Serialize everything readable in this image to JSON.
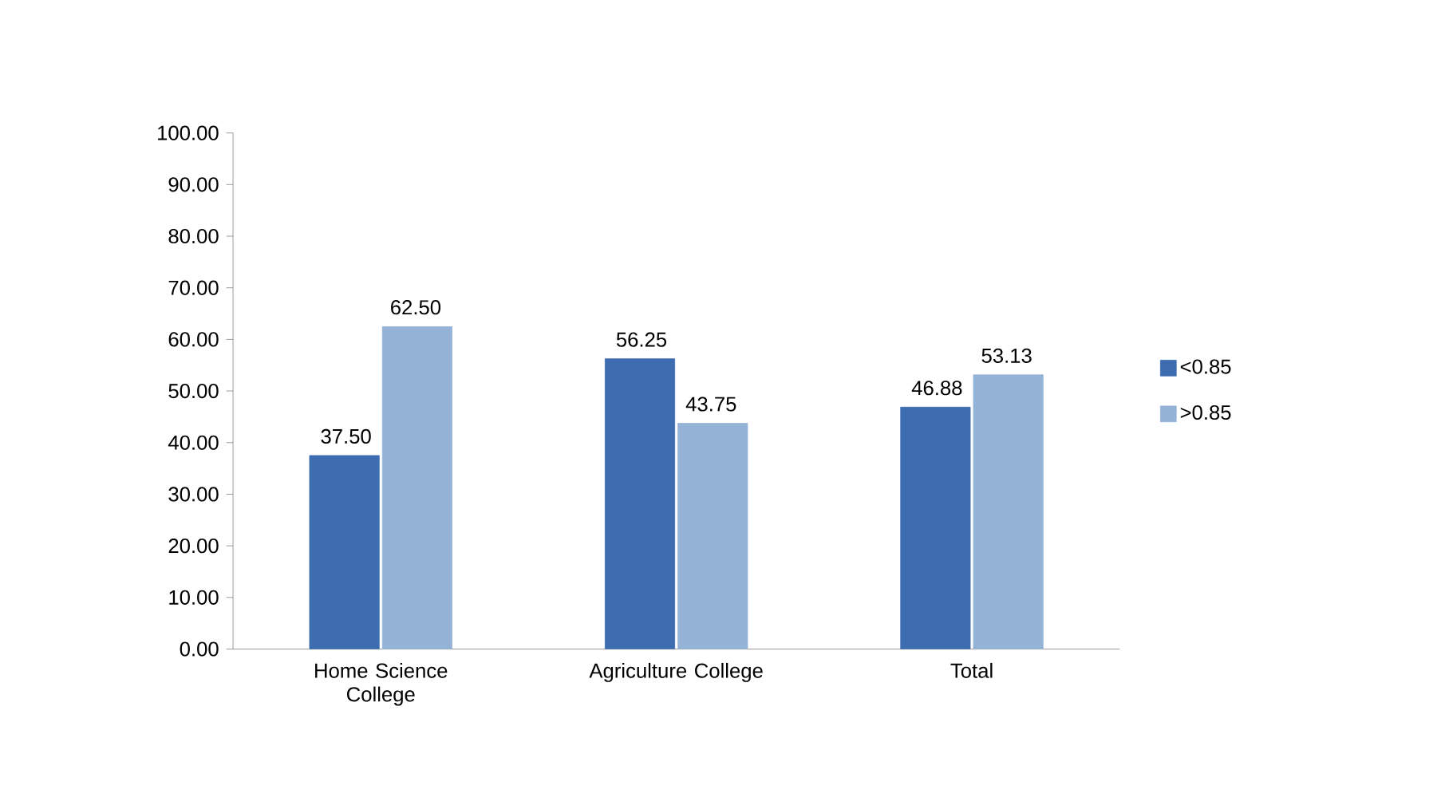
{
  "chart_data": {
    "type": "bar",
    "categories": [
      "Home Science College",
      "Agriculture College",
      "Total"
    ],
    "series": [
      {
        "name": "<0.85",
        "color": "#3d6cb0",
        "values": [
          37.5,
          56.25,
          46.88
        ],
        "value_labels": [
          "37.50",
          "56.25",
          "46.88"
        ]
      },
      {
        "name": ">0.85",
        "color": "#95b3d7",
        "values": [
          62.5,
          43.75,
          53.13
        ],
        "value_labels": [
          "62.50",
          "43.75",
          "53.13"
        ]
      }
    ],
    "ylim": [
      0,
      100
    ],
    "yticks": [
      {
        "value": 0,
        "label": "0.00"
      },
      {
        "value": 10,
        "label": "10.00"
      },
      {
        "value": 20,
        "label": "20.00"
      },
      {
        "value": 30,
        "label": "30.00"
      },
      {
        "value": 40,
        "label": "40.00"
      },
      {
        "value": 50,
        "label": "50.00"
      },
      {
        "value": 60,
        "label": "60.00"
      },
      {
        "value": 70,
        "label": "70.00"
      },
      {
        "value": 80,
        "label": "80.00"
      },
      {
        "value": 90,
        "label": "90.00"
      },
      {
        "value": 100,
        "label": "100.00"
      }
    ],
    "grid": false,
    "legend": "right"
  }
}
